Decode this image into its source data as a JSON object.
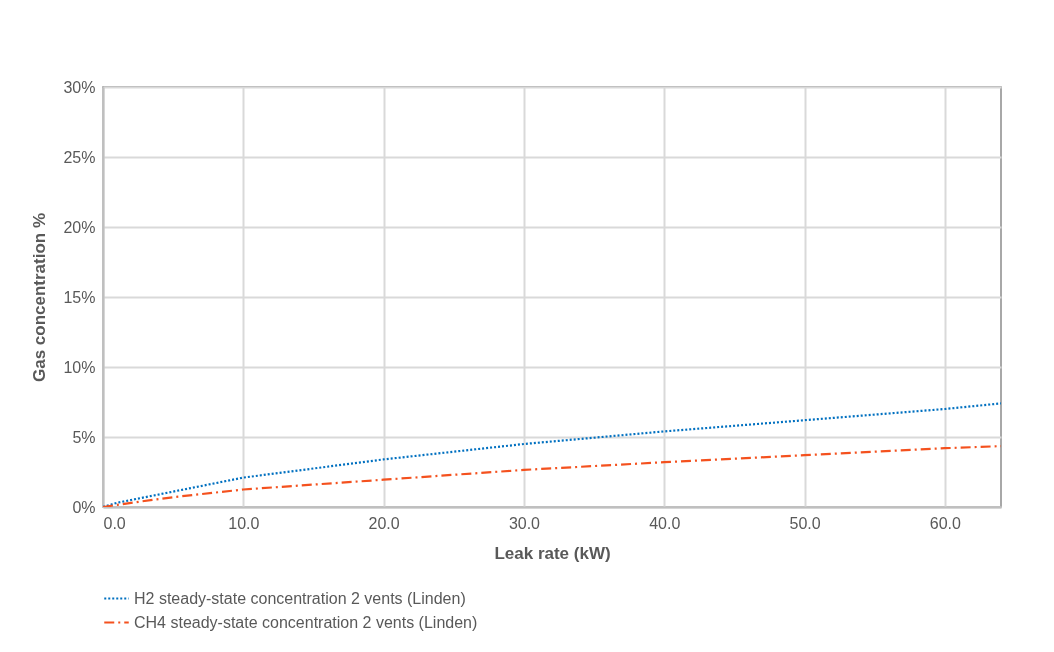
{
  "chart_data": {
    "type": "line",
    "xlabel": "Leak rate (kW)",
    "ylabel": "Gas concentration %",
    "xlim": [
      0,
      64
    ],
    "ylim": [
      0,
      30
    ],
    "xticks": [
      {
        "value": 0,
        "label": "0.0"
      },
      {
        "value": 10,
        "label": "10.0"
      },
      {
        "value": 20,
        "label": "20.0"
      },
      {
        "value": 30,
        "label": "30.0"
      },
      {
        "value": 40,
        "label": "40.0"
      },
      {
        "value": 50,
        "label": "50.0"
      },
      {
        "value": 60,
        "label": "60.0"
      }
    ],
    "yticks": [
      {
        "value": 0,
        "label": "0%"
      },
      {
        "value": 5,
        "label": "5%"
      },
      {
        "value": 10,
        "label": "10%"
      },
      {
        "value": 15,
        "label": "15%"
      },
      {
        "value": 20,
        "label": "20%"
      },
      {
        "value": 25,
        "label": "25%"
      },
      {
        "value": 30,
        "label": "30%"
      }
    ],
    "grid": true,
    "legend": "bottom",
    "marker": "none",
    "x": [
      0,
      1,
      2,
      5,
      10,
      20,
      30,
      40,
      50,
      60,
      64
    ],
    "series": [
      {
        "name": "H2 steady-state concentration 2 vents (Linden)",
        "color": "#0070c0",
        "line_style": "dotted",
        "values": [
          0,
          0.3,
          0.5,
          1.1,
          2.1,
          3.4,
          4.5,
          5.4,
          6.2,
          7.0,
          7.4
        ]
      },
      {
        "name": "CH4 steady-state concentration 2 vents (Linden)",
        "color": "#f4511e",
        "line_style": "dashed",
        "values": [
          0,
          0.15,
          0.3,
          0.7,
          1.25,
          1.95,
          2.65,
          3.2,
          3.7,
          4.2,
          4.35
        ]
      }
    ]
  }
}
